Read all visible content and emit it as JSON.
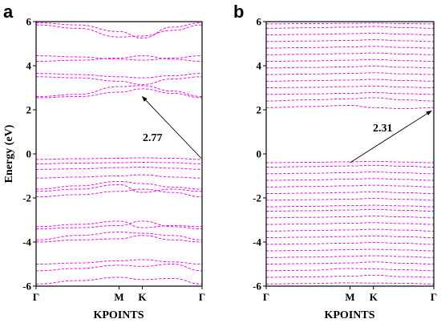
{
  "chart_data": [
    {
      "type": "line",
      "panel_label": "a",
      "ylabel": "Energy (eV)",
      "xlabel": "KPOINTS",
      "ylim": [
        -6,
        6
      ],
      "yticks": [
        -6,
        -4,
        -2,
        0,
        2,
        4,
        6
      ],
      "xticks": [
        {
          "pos": 0.0,
          "label": "Γ"
        },
        {
          "pos": 0.5,
          "label": "M"
        },
        {
          "pos": 0.64,
          "label": "K"
        },
        {
          "pos": 1.0,
          "label": "Γ"
        }
      ],
      "x": [
        0.0,
        0.25,
        0.5,
        0.64,
        0.82,
        1.0
      ],
      "series": [
        {
          "values": [
            -5.9,
            -5.75,
            -5.6,
            -5.7,
            -5.65,
            -5.9
          ]
        },
        {
          "values": [
            -5.3,
            -5.2,
            -5.05,
            -5.1,
            -5.0,
            -5.3
          ]
        },
        {
          "values": [
            -5.0,
            -4.95,
            -4.85,
            -4.8,
            -4.9,
            -5.0
          ]
        },
        {
          "values": [
            -4.0,
            -3.9,
            -3.85,
            -3.7,
            -3.9,
            -4.0
          ]
        },
        {
          "values": [
            -3.9,
            -3.7,
            -3.55,
            -3.6,
            -3.7,
            -3.9
          ]
        },
        {
          "values": [
            -3.4,
            -3.35,
            -3.25,
            -3.05,
            -3.3,
            -3.4
          ]
        },
        {
          "values": [
            -3.3,
            -3.2,
            -3.05,
            -3.35,
            -3.25,
            -3.3
          ]
        },
        {
          "values": [
            -1.95,
            -1.85,
            -1.7,
            -1.6,
            -1.75,
            -1.95
          ]
        },
        {
          "values": [
            -1.7,
            -1.6,
            -1.4,
            -1.75,
            -1.6,
            -1.7
          ]
        },
        {
          "values": [
            -1.6,
            -1.45,
            -1.25,
            -1.35,
            -1.5,
            -1.6
          ]
        },
        {
          "values": [
            -1.1,
            -1.05,
            -1.0,
            -0.95,
            -1.05,
            -1.1
          ]
        },
        {
          "values": [
            -0.7,
            -0.68,
            -0.62,
            -0.6,
            -0.65,
            -0.7
          ]
        },
        {
          "values": [
            -0.45,
            -0.42,
            -0.4,
            -0.38,
            -0.4,
            -0.45
          ]
        },
        {
          "values": [
            -0.25,
            -0.22,
            -0.2,
            -0.18,
            -0.2,
            -0.25
          ]
        },
        {
          "values": [
            2.55,
            2.6,
            2.8,
            2.95,
            2.75,
            2.55
          ]
        },
        {
          "values": [
            2.6,
            2.7,
            3.05,
            3.1,
            2.85,
            2.6
          ]
        },
        {
          "values": [
            3.5,
            3.45,
            3.3,
            3.15,
            3.4,
            3.5
          ]
        },
        {
          "values": [
            3.65,
            3.6,
            3.5,
            3.45,
            3.55,
            3.65
          ]
        },
        {
          "values": [
            4.2,
            4.25,
            4.35,
            4.45,
            4.3,
            4.2
          ]
        },
        {
          "values": [
            4.45,
            4.4,
            4.3,
            4.25,
            4.35,
            4.45
          ]
        },
        {
          "values": [
            5.85,
            5.7,
            5.3,
            5.35,
            5.6,
            5.85
          ]
        },
        {
          "values": [
            5.95,
            5.85,
            5.55,
            5.25,
            5.75,
            5.95
          ]
        }
      ],
      "annotation": {
        "text": "2.77",
        "from": [
          1.0,
          -0.2
        ],
        "to": [
          0.64,
          2.6
        ]
      }
    },
    {
      "type": "line",
      "panel_label": "b",
      "xlabel": "KPOINTS",
      "ylim": [
        -6,
        6
      ],
      "yticks": [
        -6,
        -4,
        -2,
        0,
        2,
        4,
        6
      ],
      "xticks": [
        {
          "pos": 0.0,
          "label": "Γ"
        },
        {
          "pos": 0.5,
          "label": "M"
        },
        {
          "pos": 0.64,
          "label": "K"
        },
        {
          "pos": 1.0,
          "label": "Γ"
        }
      ],
      "x": [
        0.0,
        0.25,
        0.5,
        0.64,
        0.82,
        1.0
      ],
      "series": [
        {
          "values": [
            -5.9,
            -5.88,
            -5.85,
            -5.86,
            -5.87,
            -5.9
          ]
        },
        {
          "values": [
            -5.6,
            -5.58,
            -5.55,
            -5.5,
            -5.57,
            -5.6
          ]
        },
        {
          "values": [
            -5.3,
            -5.28,
            -5.2,
            -5.22,
            -5.26,
            -5.3
          ]
        },
        {
          "values": [
            -5.0,
            -4.98,
            -4.95,
            -4.9,
            -4.96,
            -5.0
          ]
        },
        {
          "values": [
            -4.7,
            -4.68,
            -4.65,
            -4.62,
            -4.66,
            -4.7
          ]
        },
        {
          "values": [
            -4.4,
            -4.38,
            -4.35,
            -4.33,
            -4.36,
            -4.4
          ]
        },
        {
          "values": [
            -4.1,
            -4.08,
            -4.05,
            -4.02,
            -4.06,
            -4.1
          ]
        },
        {
          "values": [
            -3.8,
            -3.78,
            -3.75,
            -3.72,
            -3.76,
            -3.8
          ]
        },
        {
          "values": [
            -3.5,
            -3.48,
            -3.45,
            -3.42,
            -3.46,
            -3.5
          ]
        },
        {
          "values": [
            -3.2,
            -3.18,
            -3.15,
            -3.12,
            -3.16,
            -3.2
          ]
        },
        {
          "values": [
            -2.9,
            -2.88,
            -2.85,
            -2.82,
            -2.86,
            -2.9
          ]
        },
        {
          "values": [
            -2.6,
            -2.58,
            -2.55,
            -2.52,
            -2.56,
            -2.6
          ]
        },
        {
          "values": [
            -2.4,
            -2.38,
            -2.35,
            -2.33,
            -2.36,
            -2.4
          ]
        },
        {
          "values": [
            -2.1,
            -2.08,
            -2.05,
            -2.02,
            -2.06,
            -2.1
          ]
        },
        {
          "values": [
            -1.8,
            -1.78,
            -1.75,
            -1.72,
            -1.76,
            -1.8
          ]
        },
        {
          "values": [
            -1.5,
            -1.48,
            -1.45,
            -1.42,
            -1.46,
            -1.5
          ]
        },
        {
          "values": [
            -1.2,
            -1.18,
            -1.15,
            -1.12,
            -1.16,
            -1.2
          ]
        },
        {
          "values": [
            -0.9,
            -0.88,
            -0.85,
            -0.82,
            -0.86,
            -0.9
          ]
        },
        {
          "values": [
            -0.6,
            -0.58,
            -0.55,
            -0.52,
            -0.56,
            -0.6
          ]
        },
        {
          "values": [
            -0.4,
            -0.38,
            -0.36,
            -0.34,
            -0.37,
            -0.4
          ]
        },
        {
          "values": [
            2.1,
            2.15,
            2.2,
            2.1,
            2.05,
            2.1
          ]
        },
        {
          "values": [
            2.4,
            2.45,
            2.5,
            2.55,
            2.45,
            2.4
          ]
        },
        {
          "values": [
            2.7,
            2.72,
            2.75,
            2.78,
            2.73,
            2.7
          ]
        },
        {
          "values": [
            3.0,
            3.02,
            3.05,
            3.08,
            3.03,
            3.0
          ]
        },
        {
          "values": [
            3.3,
            3.32,
            3.35,
            3.38,
            3.33,
            3.3
          ]
        },
        {
          "values": [
            3.6,
            3.62,
            3.65,
            3.68,
            3.63,
            3.6
          ]
        },
        {
          "values": [
            3.9,
            3.92,
            3.95,
            3.98,
            3.93,
            3.9
          ]
        },
        {
          "values": [
            4.2,
            4.22,
            4.25,
            4.28,
            4.23,
            4.2
          ]
        },
        {
          "values": [
            4.5,
            4.52,
            4.55,
            4.58,
            4.53,
            4.5
          ]
        },
        {
          "values": [
            4.8,
            4.82,
            4.85,
            4.88,
            4.83,
            4.8
          ]
        },
        {
          "values": [
            5.1,
            5.12,
            5.15,
            5.18,
            5.13,
            5.1
          ]
        },
        {
          "values": [
            5.4,
            5.42,
            5.45,
            5.48,
            5.43,
            5.4
          ]
        },
        {
          "values": [
            5.7,
            5.72,
            5.75,
            5.78,
            5.73,
            5.7
          ]
        },
        {
          "values": [
            5.9,
            5.91,
            5.92,
            5.93,
            5.91,
            5.9
          ]
        }
      ],
      "annotation": {
        "text": "2.31",
        "from": [
          0.5,
          -0.4
        ],
        "to": [
          1.0,
          1.95
        ]
      }
    }
  ]
}
